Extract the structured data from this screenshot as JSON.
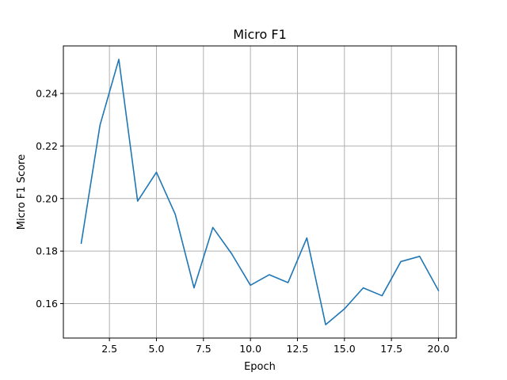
{
  "chart_data": {
    "type": "line",
    "title": "Micro F1",
    "xlabel": "Epoch",
    "ylabel": "Micro F1 Score",
    "grid": true,
    "xlim": [
      0.05,
      20.95
    ],
    "ylim": [
      0.1469,
      0.2581
    ],
    "xticks": [
      2.5,
      5.0,
      7.5,
      10.0,
      12.5,
      15.0,
      17.5,
      20.0
    ],
    "xtick_labels": [
      "2.5",
      "5.0",
      "7.5",
      "10.0",
      "12.5",
      "15.0",
      "17.5",
      "20.0"
    ],
    "yticks": [
      0.16,
      0.18,
      0.2,
      0.22,
      0.24
    ],
    "ytick_labels": [
      "0.16",
      "0.18",
      "0.20",
      "0.22",
      "0.24"
    ],
    "series": [
      {
        "color": "#1f77b4",
        "x": [
          1,
          2,
          3,
          4,
          5,
          6,
          7,
          8,
          9,
          10,
          11,
          12,
          13,
          14,
          15,
          16,
          17,
          18,
          19,
          20
        ],
        "y": [
          0.183,
          0.228,
          0.253,
          0.199,
          0.21,
          0.194,
          0.166,
          0.189,
          0.179,
          0.167,
          0.171,
          0.168,
          0.185,
          0.152,
          0.158,
          0.166,
          0.163,
          0.176,
          0.178,
          0.165
        ]
      }
    ]
  }
}
